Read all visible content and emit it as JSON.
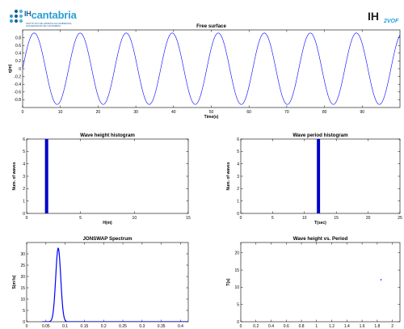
{
  "logo_left": {
    "brand_prefix": "IH",
    "brand": "cantabria",
    "subtitle": "INSTITUTO DE HIDRÁULICA AMBIENTAL\nUNIVERSIDAD DE CANTABRIA",
    "dot_colors": [
      "#2a9fd6",
      "#1d5f99",
      "#4fb3e3",
      "#2a9fd6",
      "#1d5f99",
      "#4fb3e3",
      "#2a9fd6",
      "#1d5f99",
      "#4fb3e3"
    ]
  },
  "logo_right": {
    "main": "IH",
    "superscript": "2VOF"
  },
  "colors": {
    "series": "#0000ff",
    "axis": "#000000",
    "bar": "#0000cc"
  },
  "chart_data": [
    {
      "id": "free-surface",
      "type": "line",
      "title": "Free surface",
      "xlabel": "Time(s)",
      "ylabel": "η(m)",
      "xlim": [
        0,
        100
      ],
      "ylim": [
        -1,
        1
      ],
      "xticks": [
        0,
        10,
        20,
        30,
        40,
        50,
        60,
        70,
        80,
        90
      ],
      "yticks": [
        -0.8,
        -0.6,
        -0.4,
        -0.2,
        0,
        0.2,
        0.4,
        0.6,
        0.8
      ],
      "ytick_labels": [
        "-0.8",
        "-0.6",
        "-0.4",
        "-0.2",
        "0",
        "0.2",
        "0.4",
        "0.6",
        "0.8"
      ],
      "series": [
        {
          "amplitude": 0.92,
          "period": 12.2,
          "x_start": 0,
          "x_end": 100
        }
      ]
    },
    {
      "id": "wave-height-histogram",
      "type": "bar",
      "title": "Wave height histogram",
      "xlabel": "H(m)",
      "ylabel": "Num. of waves",
      "xlim": [
        0,
        15
      ],
      "ylim": [
        0,
        6
      ],
      "xticks": [
        0,
        5,
        10,
        15
      ],
      "yticks": [
        0,
        1,
        2,
        3,
        4,
        5,
        6
      ],
      "bars": [
        {
          "x": 1.85,
          "width": 0.3,
          "value": 6
        }
      ]
    },
    {
      "id": "wave-period-histogram",
      "type": "bar",
      "title": "Wave period histogram",
      "xlabel": "T(sec)",
      "ylabel": "Num. of waves",
      "xlim": [
        0,
        25
      ],
      "ylim": [
        0,
        6
      ],
      "xticks": [
        0,
        5,
        10,
        15,
        20,
        25
      ],
      "yticks": [
        0,
        1,
        2,
        3,
        4,
        5,
        6
      ],
      "bars": [
        {
          "x": 12.2,
          "width": 0.5,
          "value": 6
        }
      ]
    },
    {
      "id": "jonswap-spectrum",
      "type": "line",
      "title": "JONSWAP Spectrum",
      "xlabel": "f(Hz)",
      "ylabel": "S(m²/s)",
      "xlim": [
        0,
        0.42
      ],
      "ylim": [
        0,
        35
      ],
      "xticks": [
        0,
        0.05,
        0.1,
        0.15,
        0.2,
        0.25,
        0.3,
        0.35,
        0.4
      ],
      "xtick_labels": [
        "0",
        "0.05",
        "0.1",
        "0.15",
        "0.2",
        "0.25",
        "0.3",
        "0.35",
        "0.4"
      ],
      "yticks": [
        0,
        5,
        10,
        15,
        20,
        25,
        30
      ],
      "series": [
        {
          "peak_f": 0.082,
          "peak_s": 32.5,
          "spread": 0.0065,
          "x_start": 0.04,
          "x_end": 0.42
        }
      ]
    },
    {
      "id": "wave-height-vs-period",
      "type": "scatter",
      "title": "Wave height vs. Period",
      "xlabel": "H(m)",
      "ylabel": "T(s)",
      "xlim": [
        0,
        2.1
      ],
      "ylim": [
        0,
        23
      ],
      "xticks": [
        0,
        0.2,
        0.4,
        0.6,
        0.8,
        1,
        1.2,
        1.4,
        1.6,
        1.8,
        2
      ],
      "xtick_labels": [
        "0",
        "0.2",
        "0.4",
        "0.6",
        "0.8",
        "1",
        "1.2",
        "1.4",
        "1.6",
        "1.8",
        "2"
      ],
      "yticks": [
        0,
        5,
        10,
        15,
        20
      ],
      "points": [
        {
          "x": 1.85,
          "y": 12.2
        }
      ]
    }
  ]
}
